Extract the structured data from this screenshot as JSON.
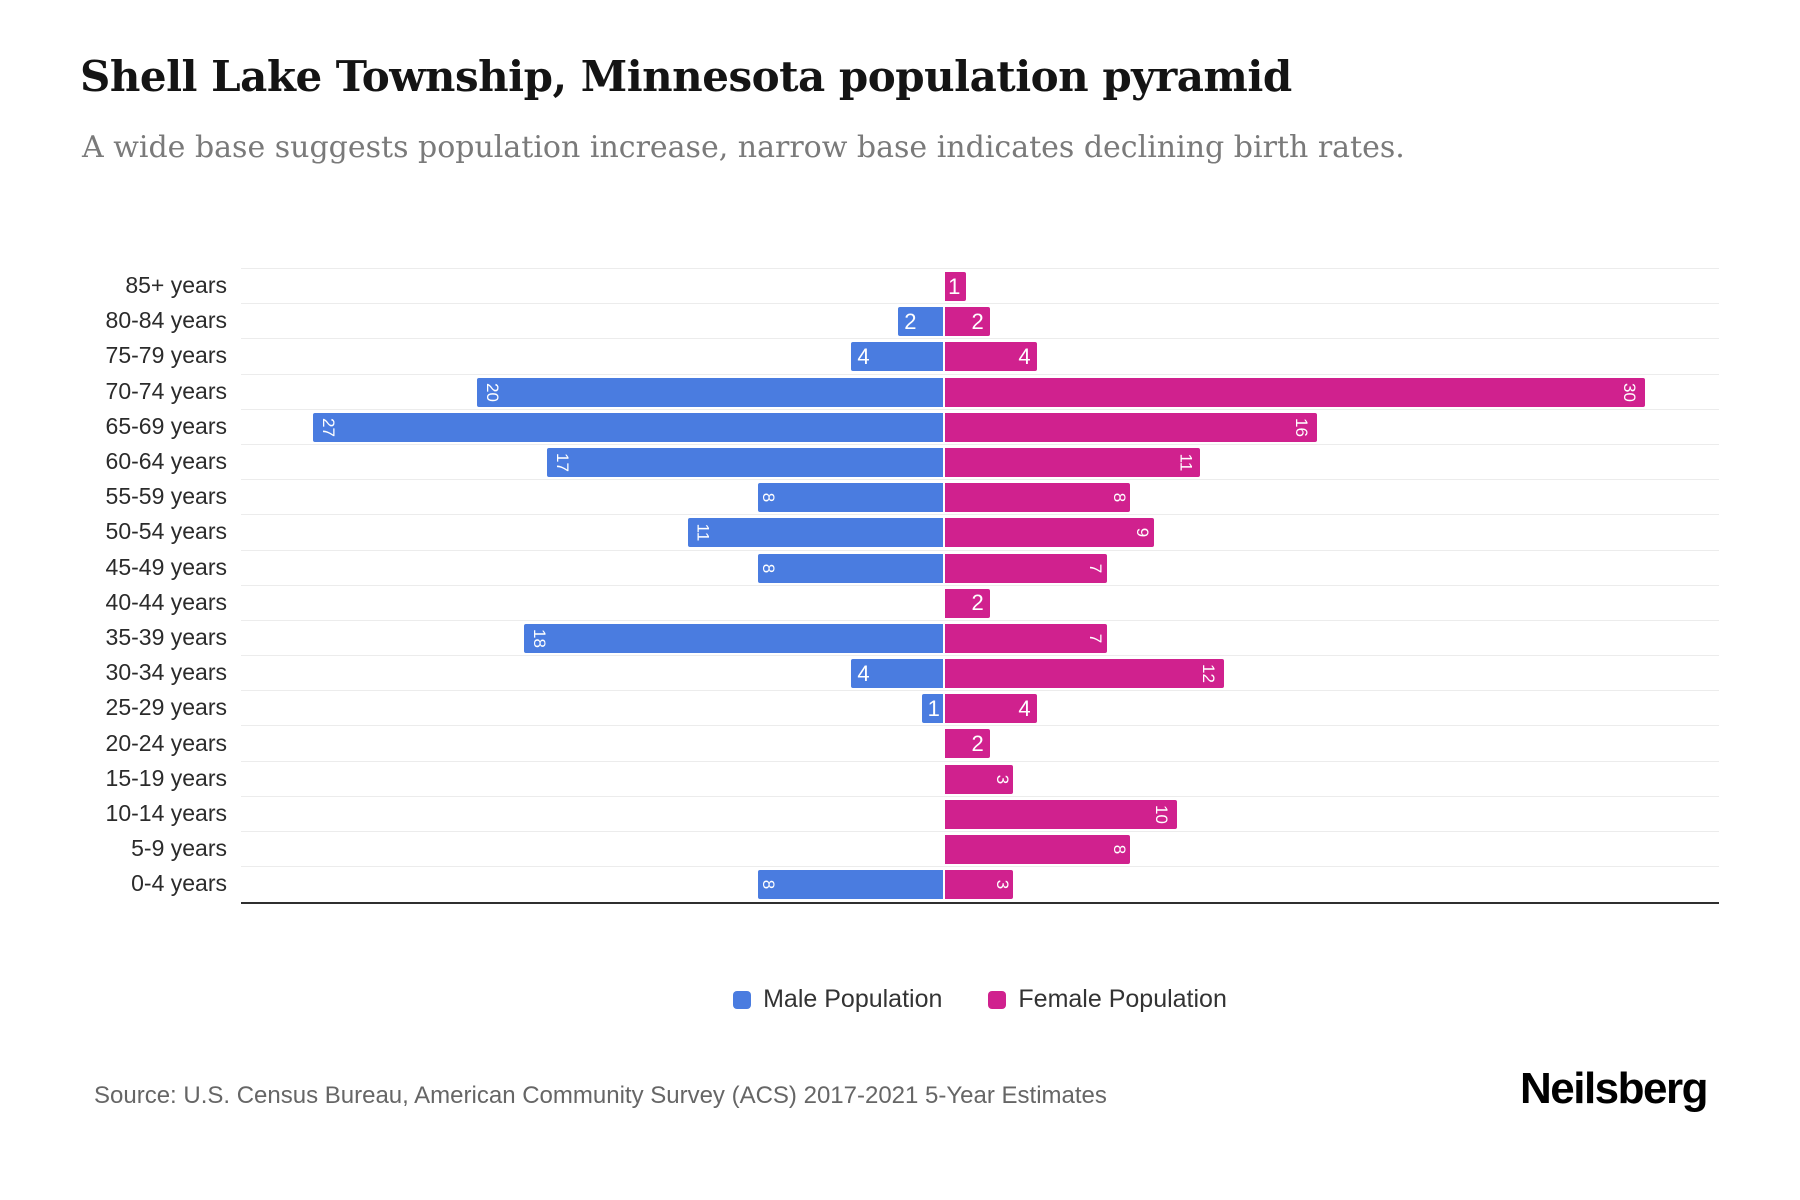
{
  "chart_data": {
    "type": "bar",
    "variant": "population-pyramid",
    "title": "Shell Lake Township, Minnesota population pyramid",
    "subtitle": "A wide base suggests population increase, narrow base indicates declining birth rates.",
    "categories": [
      "85+ years",
      "80-84 years",
      "75-79 years",
      "70-74 years",
      "65-69 years",
      "60-64 years",
      "55-59 years",
      "50-54 years",
      "45-49 years",
      "40-44 years",
      "35-39 years",
      "30-34 years",
      "25-29 years",
      "20-24 years",
      "15-19 years",
      "10-14 years",
      "5-9 years",
      "0-4 years"
    ],
    "series": [
      {
        "name": "Male Population",
        "color": "#4a7ce0",
        "direction": "left",
        "values": [
          0,
          2,
          4,
          20,
          27,
          17,
          8,
          11,
          8,
          0,
          18,
          4,
          1,
          0,
          0,
          0,
          0,
          8
        ]
      },
      {
        "name": "Female Population",
        "color": "#d0218e",
        "direction": "right",
        "values": [
          1,
          2,
          4,
          30,
          16,
          11,
          8,
          9,
          7,
          2,
          7,
          12,
          4,
          2,
          3,
          10,
          8,
          3
        ]
      }
    ],
    "value_labels_rotated": {
      "male": [
        false,
        false,
        false,
        true,
        true,
        true,
        true,
        true,
        true,
        false,
        true,
        false,
        false,
        false,
        false,
        false,
        false,
        true
      ],
      "female": [
        false,
        false,
        false,
        true,
        true,
        true,
        true,
        true,
        true,
        false,
        true,
        true,
        false,
        false,
        true,
        true,
        true,
        true
      ]
    },
    "axis": {
      "center_value": 0,
      "grid": true
    },
    "legend_position": "bottom"
  },
  "footer": {
    "source": "Source: U.S. Census Bureau, American Community Survey (ACS) 2017-2021 5-Year Estimates",
    "brand": "Neilsberg"
  }
}
